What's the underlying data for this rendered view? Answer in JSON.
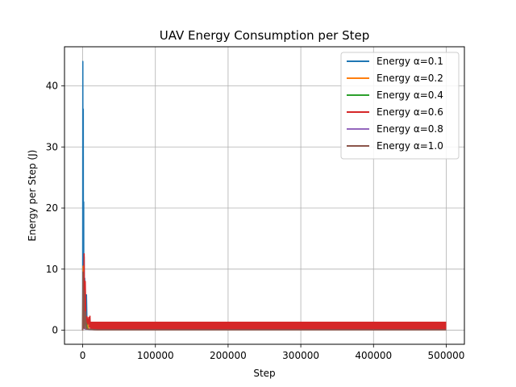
{
  "chart_data": {
    "type": "line",
    "title": "UAV Energy Consumption per Step",
    "xlabel": "Step",
    "ylabel": "Energy per Step (J)",
    "xlim": [
      -25000,
      525000
    ],
    "ylim": [
      -2.3,
      46.4
    ],
    "xticks": [
      0,
      100000,
      200000,
      300000,
      400000,
      500000
    ],
    "yticks": [
      0,
      10,
      20,
      30,
      40
    ],
    "grid": true,
    "legend_position": "upper-right",
    "series": [
      {
        "name": "Energy α=0.1",
        "color": "#1f77b4",
        "points": [
          [
            0,
            0
          ],
          [
            200,
            44
          ],
          [
            400,
            0.5
          ],
          [
            800,
            36.2
          ],
          [
            1000,
            0.5
          ],
          [
            1400,
            21
          ],
          [
            1600,
            0.4
          ],
          [
            2000,
            12
          ],
          [
            2300,
            0.4
          ],
          [
            2800,
            8.5
          ],
          [
            3200,
            0.3
          ],
          [
            4000,
            5.8
          ],
          [
            4600,
            0.3
          ],
          [
            5200,
            5.8
          ],
          [
            6000,
            0.3
          ],
          [
            7000,
            1.5
          ],
          [
            8000,
            0.2
          ],
          [
            20000,
            0.1
          ],
          [
            500000,
            0.1
          ]
        ]
      },
      {
        "name": "Energy α=0.2",
        "color": "#ff7f0e",
        "points": [
          [
            0,
            0
          ],
          [
            600,
            10.5
          ],
          [
            1000,
            0.5
          ],
          [
            1500,
            6
          ],
          [
            2200,
            0.4
          ],
          [
            3200,
            3.5
          ],
          [
            4500,
            0.3
          ],
          [
            6000,
            2
          ],
          [
            8000,
            0.2
          ],
          [
            20000,
            0.05
          ],
          [
            500000,
            0.05
          ]
        ]
      },
      {
        "name": "Energy α=0.4",
        "color": "#2ca02c",
        "points": [
          [
            0,
            0
          ],
          [
            500,
            7.5
          ],
          [
            1000,
            0.4
          ],
          [
            1800,
            5
          ],
          [
            2600,
            0.3
          ],
          [
            4000,
            2.5
          ],
          [
            6000,
            0.2
          ],
          [
            20000,
            0.05
          ],
          [
            500000,
            0.05
          ]
        ]
      },
      {
        "name": "Energy α=0.6",
        "color": "#d62728",
        "band": {
          "x_start": 10000,
          "x_end": 500000,
          "low": 0.1,
          "high": 1.4
        },
        "points": [
          [
            0,
            0
          ],
          [
            800,
            6
          ],
          [
            1300,
            0.5
          ],
          [
            2000,
            12.5
          ],
          [
            2500,
            0.8
          ],
          [
            3500,
            8
          ],
          [
            4500,
            1
          ],
          [
            6000,
            2.2
          ],
          [
            7000,
            1
          ],
          [
            8500,
            2.1
          ],
          [
            9500,
            0.5
          ],
          [
            10000,
            2.3
          ],
          [
            10500,
            0.5
          ]
        ]
      },
      {
        "name": "Energy α=0.8",
        "color": "#9467bd",
        "points": [
          [
            0,
            0
          ],
          [
            500,
            5
          ],
          [
            1000,
            0.3
          ],
          [
            2000,
            3
          ],
          [
            3000,
            0.2
          ],
          [
            20000,
            0.05
          ],
          [
            500000,
            0.05
          ]
        ]
      },
      {
        "name": "Energy α=1.0",
        "color": "#8c564b",
        "points": [
          [
            0,
            0
          ],
          [
            400,
            9.5
          ],
          [
            900,
            0.4
          ],
          [
            1600,
            6.5
          ],
          [
            2400,
            0.3
          ],
          [
            3600,
            3
          ],
          [
            5000,
            0.2
          ],
          [
            20000,
            0.05
          ],
          [
            500000,
            0.05
          ]
        ]
      }
    ]
  }
}
